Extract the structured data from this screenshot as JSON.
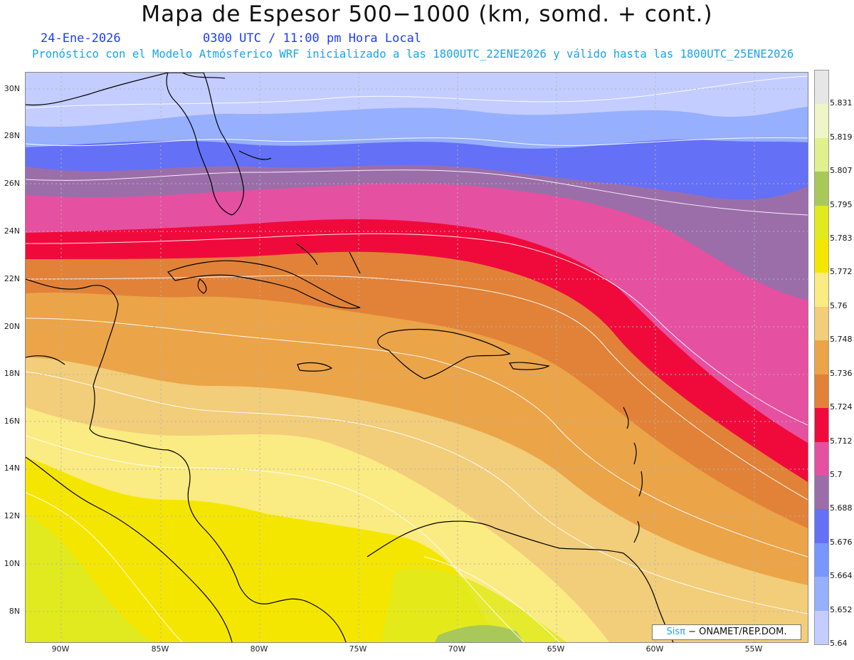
{
  "title": "Mapa de Espesor 500−1000 (km, somd. + cont.)",
  "date": "24-Ene-2026",
  "time": "0300 UTC / 11:00 pm Hora Local",
  "subtitle": "Pronóstico con el Modelo Atmósferico WRF inicializado a las 1800UTC_22ENE2026 y válido hasta las  1800UTC_25ENE2026",
  "credit_sis": "Sisπ",
  "credit_rest": "− ONAMET/REP.DOM.",
  "lat_labels": [
    "30N",
    "28N",
    "26N",
    "24N",
    "22N",
    "20N",
    "18N",
    "16N",
    "14N",
    "12N",
    "10N",
    "8N"
  ],
  "lon_labels": [
    "90W",
    "85W",
    "80W",
    "75W",
    "70W",
    "65W",
    "60W",
    "55W"
  ],
  "legend_levels": [
    "5.831",
    "5.819",
    "5.807",
    "5.795",
    "5.783",
    "5.772",
    "5.76",
    "5.748",
    "5.736",
    "5.724",
    "5.712",
    "5.7",
    "5.688",
    "5.676",
    "5.664",
    "5.652",
    "5.64"
  ],
  "legend_colors": [
    "#e6e6e6",
    "#f0f5c8",
    "#e0f08c",
    "#a8c85a",
    "#e0ea1e",
    "#f5e600",
    "#faeb82",
    "#f2cd7a",
    "#eba448",
    "#e18238",
    "#f00a3c",
    "#e650a0",
    "#9b6eaa",
    "#6470f5",
    "#7896ff",
    "#96afff",
    "#c3cdff"
  ]
}
